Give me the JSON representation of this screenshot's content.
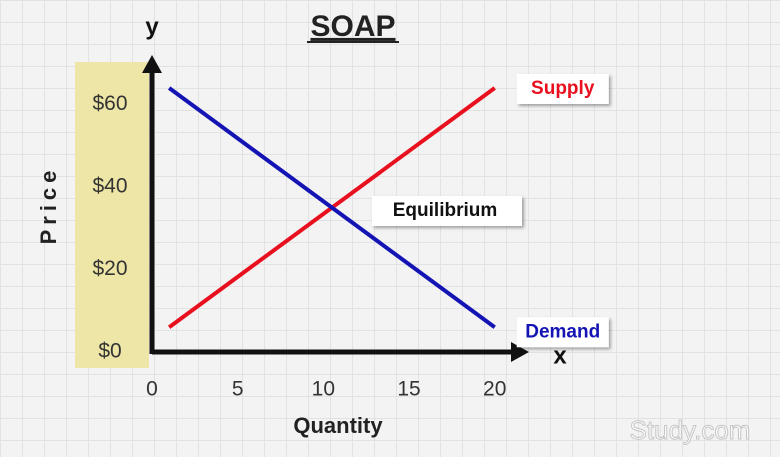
{
  "chart_data": {
    "type": "line",
    "title": "SOAP",
    "x_axis_letter": "x",
    "y_axis_letter": "y",
    "x_label": "Quantity",
    "y_label": "Price",
    "xlim": [
      0,
      22
    ],
    "ylim": [
      0,
      72
    ],
    "xticks": [
      0,
      5,
      10,
      15,
      20
    ],
    "yticks": [
      {
        "value": 0,
        "label": "$0"
      },
      {
        "value": 20,
        "label": "$20"
      },
      {
        "value": 40,
        "label": "$40"
      },
      {
        "value": 60,
        "label": "$60"
      }
    ],
    "series": [
      {
        "name": "Supply",
        "color": "#e8101e",
        "x": [
          1,
          20
        ],
        "values": [
          6,
          64
        ]
      },
      {
        "name": "Demand",
        "color": "#1414b4",
        "x": [
          1,
          20
        ],
        "values": [
          64,
          6
        ]
      }
    ],
    "annotation": "Equilibrium",
    "watermark": "Study.com"
  }
}
